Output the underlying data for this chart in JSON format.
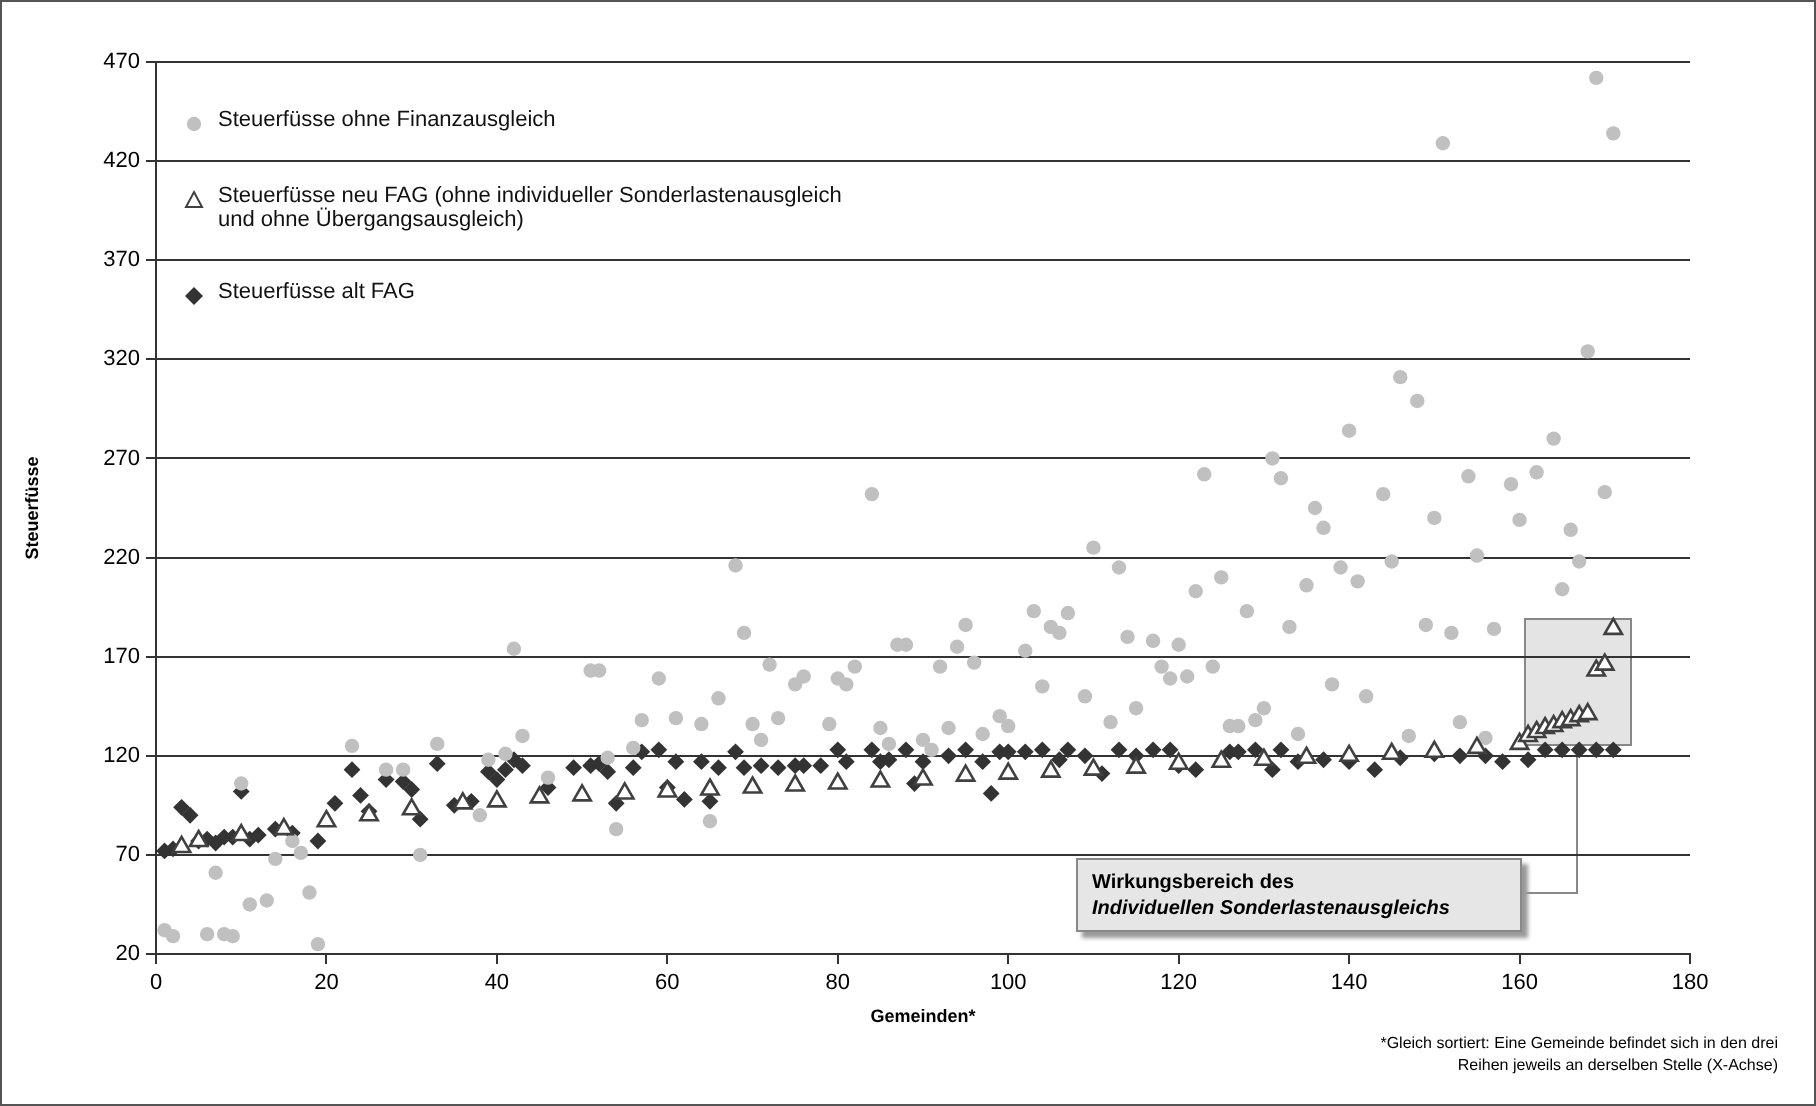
{
  "chart_data": {
    "type": "scatter",
    "xlabel": "Gemeinden*",
    "ylabel": "Steuerfüsse",
    "xlim": [
      0,
      180
    ],
    "xticks": [
      0,
      20,
      40,
      60,
      80,
      100,
      120,
      140,
      160,
      180
    ],
    "ylim": [
      20,
      470
    ],
    "yticks": [
      20,
      70,
      120,
      170,
      220,
      270,
      320,
      370,
      420,
      470
    ],
    "grid": "y",
    "legend": "top left",
    "series": [
      {
        "name": "Steuerfüsse ohne Finanzausgleich",
        "color": "#c0c0c0",
        "marker": "circle",
        "x": [
          1,
          2,
          6,
          7,
          8,
          9,
          10,
          11,
          13,
          14,
          16,
          17,
          18,
          19,
          23,
          27,
          29,
          31,
          33,
          38,
          39,
          41,
          42,
          43,
          46,
          51,
          52,
          53,
          54,
          56,
          57,
          59,
          61,
          64,
          65,
          66,
          68,
          69,
          70,
          71,
          72,
          73,
          75,
          76,
          79,
          80,
          81,
          82,
          84,
          85,
          86,
          87,
          88,
          90,
          91,
          92,
          93,
          94,
          95,
          96,
          97,
          99,
          100,
          102,
          103,
          104,
          105,
          106,
          107,
          109,
          110,
          112,
          113,
          114,
          115,
          117,
          118,
          119,
          120,
          121,
          122,
          123,
          124,
          125,
          126,
          127,
          128,
          129,
          130,
          131,
          132,
          133,
          134,
          135,
          136,
          137,
          138,
          139,
          140,
          141,
          142,
          144,
          145,
          146,
          147,
          148,
          149,
          150,
          151,
          152,
          153,
          154,
          155,
          156,
          157,
          159,
          160,
          162,
          164,
          165,
          166,
          167,
          168,
          169,
          170,
          171
        ],
        "values": [
          32,
          29,
          30,
          61,
          30,
          29,
          106,
          45,
          47,
          68,
          77,
          71,
          51,
          25,
          125,
          113,
          113,
          70,
          126,
          90,
          118,
          121,
          174,
          130,
          109,
          163,
          163,
          119,
          83,
          124,
          138,
          159,
          139,
          136,
          87,
          149,
          216,
          182,
          136,
          128,
          166,
          139,
          156,
          160,
          136,
          159,
          156,
          165,
          252,
          134,
          126,
          176,
          176,
          128,
          123,
          165,
          134,
          175,
          186,
          167,
          131,
          140,
          135,
          173,
          193,
          155,
          185,
          182,
          192,
          150,
          225,
          137,
          215,
          180,
          144,
          178,
          165,
          159,
          176,
          160,
          203,
          262,
          165,
          210,
          135,
          135,
          193,
          138,
          144,
          270,
          260,
          185,
          131,
          206,
          245,
          235,
          156,
          215,
          284,
          208,
          150,
          252,
          218,
          311,
          130,
          299,
          186,
          240,
          429,
          182,
          137,
          261,
          221,
          129,
          184,
          257,
          239,
          263,
          280,
          204,
          234,
          218,
          324,
          462,
          253,
          434
        ]
      },
      {
        "name": "Steuerfüsse neu FAG (ohne individueller Sonderlastenausgleich und ohne Übergangsausgleich)",
        "color": "#404040",
        "marker": "triangle",
        "x": [
          3,
          5,
          10,
          15,
          20,
          25,
          30,
          36,
          40,
          45,
          50,
          55,
          60,
          65,
          70,
          75,
          80,
          85,
          90,
          95,
          100,
          105,
          110,
          115,
          120,
          125,
          130,
          135,
          140,
          145,
          150,
          155,
          160,
          161,
          162,
          163,
          164,
          165,
          166,
          167,
          168,
          169,
          170,
          171
        ],
        "values": [
          74,
          77,
          80,
          83,
          87,
          90,
          93,
          96,
          97,
          99,
          100,
          101,
          102,
          103,
          104,
          105,
          106,
          107,
          108,
          110,
          111,
          112,
          113,
          114,
          116,
          117,
          118,
          119,
          120,
          121,
          122,
          124,
          126,
          130,
          132,
          134,
          135,
          137,
          138,
          140,
          141,
          163,
          166,
          184
        ]
      },
      {
        "name": "Steuerfüsse alt FAG",
        "color": "#333333",
        "marker": "diamond",
        "x": [
          1,
          2,
          3,
          4,
          5,
          6,
          7,
          8,
          9,
          10,
          11,
          12,
          14,
          16,
          19,
          21,
          23,
          24,
          25,
          27,
          29,
          30,
          31,
          33,
          35,
          37,
          39,
          40,
          41,
          42,
          43,
          46,
          49,
          51,
          52,
          53,
          54,
          56,
          57,
          59,
          60,
          61,
          62,
          64,
          65,
          66,
          68,
          69,
          71,
          73,
          75,
          76,
          78,
          80,
          81,
          84,
          85,
          86,
          88,
          89,
          90,
          93,
          95,
          97,
          98,
          99,
          100,
          102,
          104,
          106,
          107,
          109,
          111,
          113,
          115,
          117,
          119,
          120,
          122,
          126,
          127,
          129,
          131,
          132,
          134,
          137,
          140,
          143,
          146,
          150,
          153,
          156,
          158,
          161,
          163,
          165,
          167,
          169,
          171
        ],
        "values": [
          72,
          73,
          94,
          90,
          77,
          78,
          76,
          79,
          79,
          102,
          78,
          80,
          83,
          81,
          77,
          96,
          113,
          100,
          92,
          108,
          107,
          103,
          88,
          116,
          95,
          97,
          112,
          108,
          113,
          118,
          115,
          104,
          114,
          115,
          116,
          112,
          96,
          114,
          122,
          123,
          104,
          117,
          98,
          117,
          97,
          114,
          122,
          114,
          115,
          114,
          115,
          115,
          115,
          123,
          117,
          123,
          117,
          118,
          123,
          106,
          117,
          120,
          123,
          117,
          101,
          122,
          122,
          122,
          123,
          118,
          123,
          120,
          111,
          123,
          120,
          123,
          123,
          115,
          113,
          122,
          122,
          123,
          113,
          123,
          117,
          118,
          117,
          113,
          119,
          121,
          120,
          120,
          117,
          118,
          123,
          123,
          123,
          123,
          123
        ]
      }
    ],
    "annotations": [
      "Wirkungsbereich des\nIndividuellen Sonderlastenausgleichs",
      "*Gleich sortiert: Eine Gemeinde befindet sich in den drei\nReihen jeweils an derselben Stelle (X-Achse)"
    ]
  }
}
